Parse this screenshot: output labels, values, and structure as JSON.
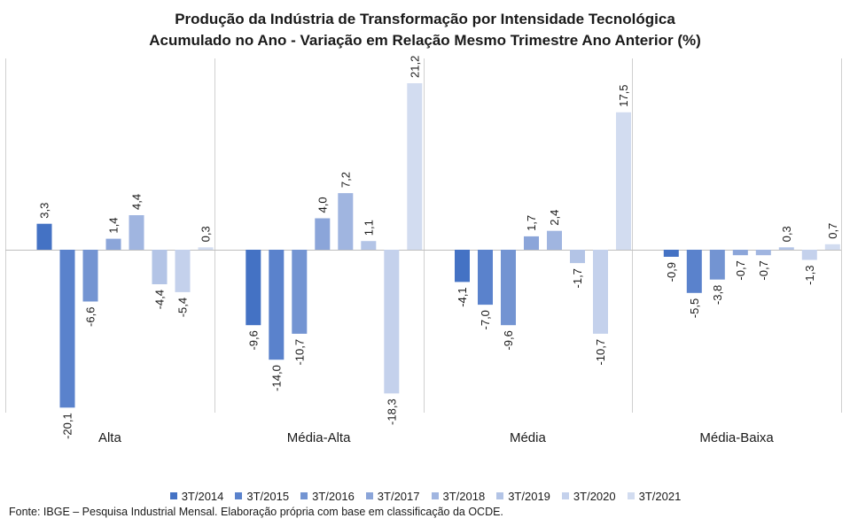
{
  "chart_data": {
    "type": "bar",
    "title": "Produção da Indústria de Transformação por Intensidade Tecnológica",
    "subtitle": "Acumulado no Ano - Variação em Relação Mesmo Trimestre Ano Anterior (%)",
    "xlabel": "",
    "ylabel": "",
    "ylim": [
      -22,
      22
    ],
    "grid": false,
    "legend_position": "bottom",
    "categories": [
      "Alta",
      "Média-Alta",
      "Média",
      "Média-Baixa"
    ],
    "series": [
      {
        "name": "3T/2014",
        "color": "#4472c4",
        "values": [
          3.3,
          -9.6,
          -4.1,
          -0.9
        ]
      },
      {
        "name": "3T/2015",
        "color": "#5a82cc",
        "values": [
          -20.1,
          -14.0,
          -7.0,
          -5.5
        ]
      },
      {
        "name": "3T/2016",
        "color": "#7394d2",
        "values": [
          -6.6,
          -10.7,
          -9.6,
          -3.8
        ]
      },
      {
        "name": "3T/2017",
        "color": "#8ba5d9",
        "values": [
          1.4,
          4.0,
          1.7,
          -0.7
        ]
      },
      {
        "name": "3T/2018",
        "color": "#a0b5e0",
        "values": [
          4.4,
          7.2,
          2.4,
          -0.7
        ]
      },
      {
        "name": "3T/2019",
        "color": "#b3c4e6",
        "values": [
          -4.4,
          1.1,
          -1.7,
          0.3
        ]
      },
      {
        "name": "3T/2020",
        "color": "#c4d1ec",
        "values": [
          -5.4,
          -18.3,
          -10.7,
          -1.3
        ]
      },
      {
        "name": "3T/2021",
        "color": "#d2dcf0",
        "values": [
          0.3,
          21.2,
          17.5,
          0.7
        ]
      }
    ],
    "data_labels": [
      [
        "3,3",
        "-20,1",
        "-6,6",
        "1,4",
        "4,4",
        "-4,4",
        "-5,4",
        "0,3"
      ],
      [
        "-9,6",
        "-14,0",
        "-10,7",
        "4,0",
        "7,2",
        "1,1",
        "-18,3",
        "21,2"
      ],
      [
        "-4,1",
        "-7,0",
        "-9,6",
        "1,7",
        "2,4",
        "-1,7",
        "-10,7",
        "17,5"
      ],
      [
        "-0,9",
        "-5,5",
        "-3,8",
        "-0,7",
        "-0,7",
        "0,3",
        "-1,3",
        "0,7"
      ]
    ]
  },
  "source_note": "Fonte: IBGE – Pesquisa Industrial Mensal. Elaboração própria com base em classificação da OCDE."
}
